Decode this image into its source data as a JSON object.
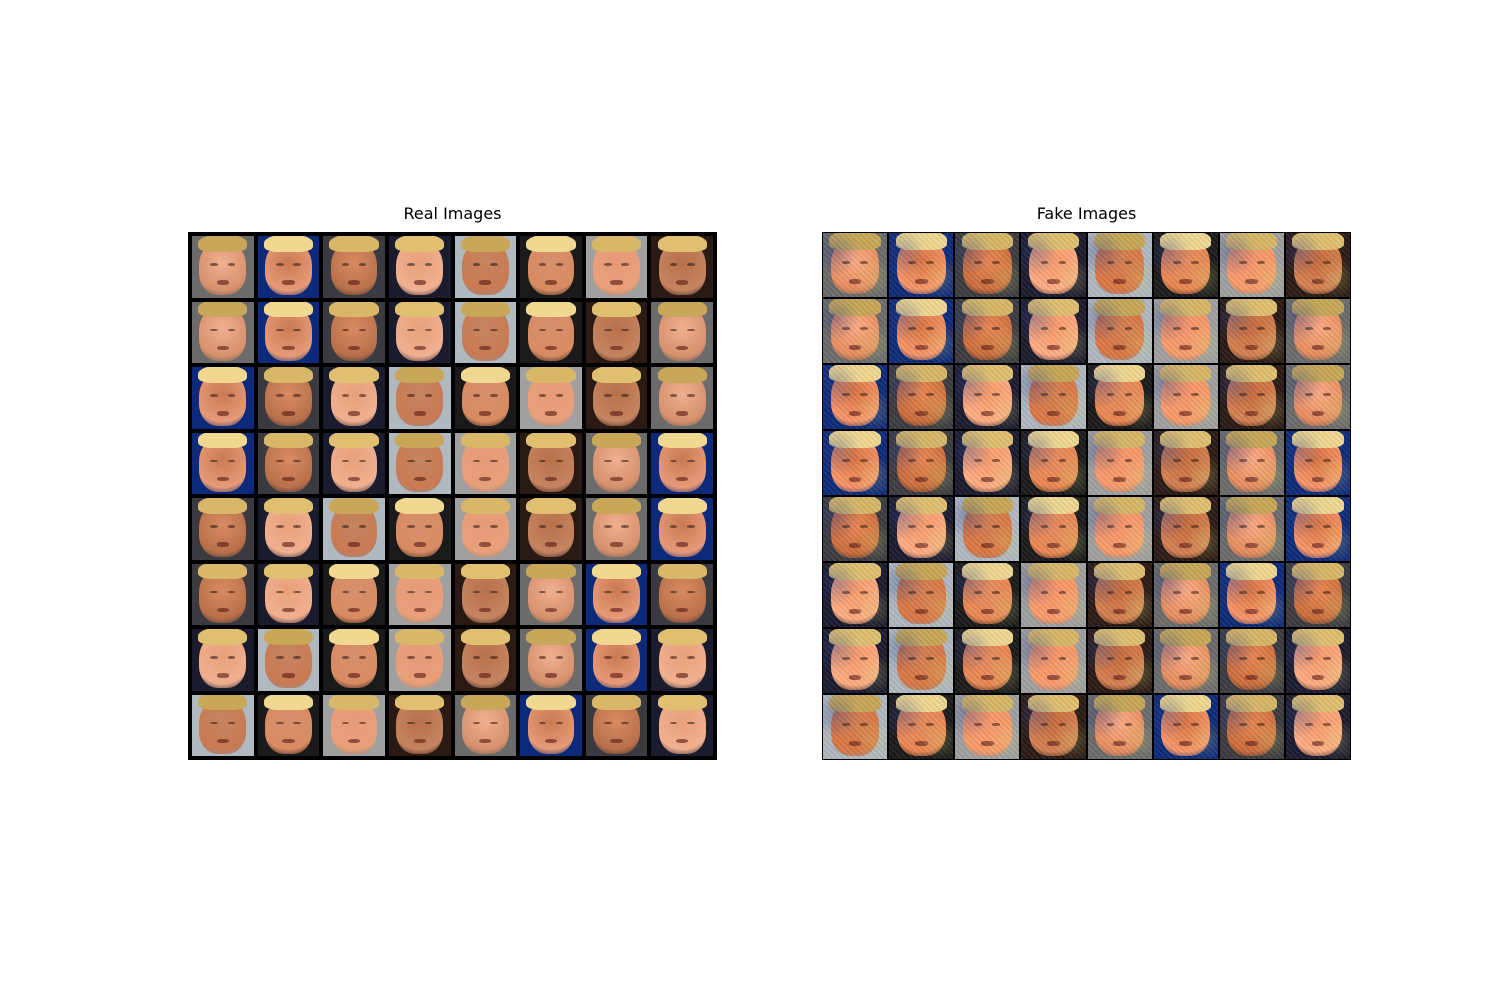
{
  "real_panel": {
    "title": "Real Images",
    "rows": 8,
    "cols": 8
  },
  "fake_panel": {
    "title": "Fake Images",
    "rows": 8,
    "cols": 8
  },
  "palette": {
    "skin": [
      "#e8a07a",
      "#d98b62",
      "#c97a52",
      "#f0b090",
      "#b8704a",
      "#e79a78",
      "#d6906c",
      "#c58460"
    ],
    "backgrounds": [
      "#1b1b2e",
      "#3a3a40",
      "#0d2a7a",
      "#6b6b6b",
      "#2a1a14",
      "#a0a0a0",
      "#1a1a1a",
      "#b0b8c0"
    ],
    "hair": [
      "#e0c070",
      "#d8b868",
      "#f0d890",
      "#c8a858"
    ]
  }
}
